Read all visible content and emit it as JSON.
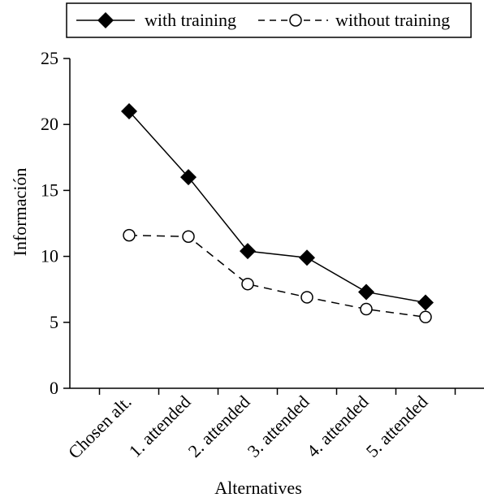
{
  "chart_data": {
    "type": "line",
    "title": "",
    "xlabel": "Alternatives",
    "ylabel": "Información",
    "categories": [
      "Chosen alt.",
      "1. attended",
      "2. attended",
      "3. attended",
      "4. attended",
      "5. attended"
    ],
    "ylim": [
      0,
      25
    ],
    "yticks": [
      0,
      5,
      10,
      15,
      20,
      25
    ],
    "grid": false,
    "legend_position": "top",
    "series": [
      {
        "name": "with training",
        "values": [
          21.0,
          16.0,
          10.4,
          9.9,
          7.3,
          6.5
        ],
        "marker": "filled-diamond",
        "line": "solid",
        "color": "#000000"
      },
      {
        "name": "without training",
        "values": [
          11.6,
          11.5,
          7.9,
          6.9,
          6.0,
          5.4
        ],
        "marker": "open-circle",
        "line": "dashed",
        "color": "#000000"
      }
    ]
  }
}
